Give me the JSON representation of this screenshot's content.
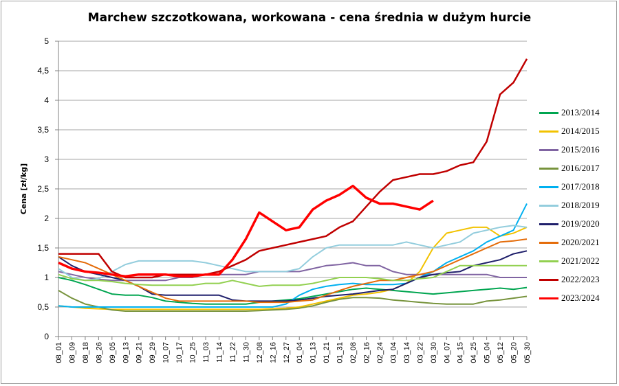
{
  "chart_data": {
    "type": "line",
    "title": "Marchew szczotkowana, workowana - cena średnia w dużym hurcie",
    "ylabel": "Cena [zł/kg]",
    "xlabel": "",
    "ylim": [
      0,
      5
    ],
    "yticks": [
      "0",
      "0,5",
      "1",
      "1,5",
      "2",
      "2,5",
      "3",
      "3,5",
      "4",
      "4,5",
      "5"
    ],
    "grid": "horizontal",
    "legend": "right",
    "categories": [
      "08_01",
      "08_09",
      "08_18",
      "08_26",
      "09_05",
      "09_13",
      "09_21",
      "09_29",
      "10_07",
      "10_17",
      "10_25",
      "11_03",
      "11_14",
      "11_22",
      "11_30",
      "12_08",
      "12_16",
      "12_27",
      "01_04",
      "01_13",
      "01_21",
      "01_31",
      "02_08",
      "02_16",
      "02_24",
      "03_04",
      "03_14",
      "03_22",
      "03_30",
      "04_07",
      "04_15",
      "04_25",
      "05_04",
      "05_12",
      "05_20",
      "05_30"
    ],
    "series": [
      {
        "name": "2013/2014",
        "color": "#00a550",
        "values": [
          1.0,
          0.95,
          0.88,
          0.8,
          0.72,
          0.7,
          0.7,
          0.66,
          0.6,
          0.58,
          0.56,
          0.55,
          0.55,
          0.55,
          0.55,
          0.58,
          0.6,
          0.62,
          0.64,
          0.68,
          0.72,
          0.76,
          0.8,
          0.82,
          0.8,
          0.78,
          0.76,
          0.74,
          0.72,
          0.74,
          0.76,
          0.78,
          0.8,
          0.82,
          0.8,
          0.83
        ]
      },
      {
        "name": "2014/2015",
        "color": "#f2c200",
        "values": [
          0.52,
          0.5,
          0.48,
          0.47,
          0.46,
          0.46,
          0.46,
          0.46,
          0.46,
          0.46,
          0.46,
          0.46,
          0.46,
          0.46,
          0.46,
          0.46,
          0.47,
          0.48,
          0.5,
          0.55,
          0.6,
          0.65,
          0.7,
          0.72,
          0.75,
          0.8,
          0.9,
          1.1,
          1.5,
          1.75,
          1.8,
          1.85,
          1.85,
          1.7,
          1.75,
          1.85
        ]
      },
      {
        "name": "2015/2016",
        "color": "#8064a2",
        "values": [
          1.1,
          1.05,
          1.0,
          0.97,
          0.95,
          0.95,
          0.95,
          0.95,
          0.95,
          1.0,
          1.0,
          1.05,
          1.05,
          1.05,
          1.05,
          1.1,
          1.1,
          1.1,
          1.1,
          1.15,
          1.2,
          1.22,
          1.25,
          1.2,
          1.2,
          1.1,
          1.05,
          1.05,
          1.05,
          1.05,
          1.05,
          1.05,
          1.05,
          1.0,
          1.0,
          1.0
        ]
      },
      {
        "name": "2016/2017",
        "color": "#77933c",
        "values": [
          0.78,
          0.65,
          0.55,
          0.5,
          0.45,
          0.43,
          0.43,
          0.43,
          0.43,
          0.43,
          0.43,
          0.43,
          0.43,
          0.43,
          0.43,
          0.44,
          0.45,
          0.46,
          0.48,
          0.52,
          0.58,
          0.63,
          0.66,
          0.66,
          0.65,
          0.62,
          0.6,
          0.58,
          0.56,
          0.55,
          0.55,
          0.55,
          0.6,
          0.62,
          0.65,
          0.68
        ]
      },
      {
        "name": "2017/2018",
        "color": "#00b0f0",
        "values": [
          0.52,
          0.5,
          0.5,
          0.5,
          0.5,
          0.5,
          0.5,
          0.5,
          0.5,
          0.5,
          0.5,
          0.5,
          0.5,
          0.5,
          0.5,
          0.5,
          0.5,
          0.55,
          0.7,
          0.8,
          0.85,
          0.88,
          0.9,
          0.88,
          0.88,
          0.88,
          0.9,
          1.0,
          1.1,
          1.25,
          1.35,
          1.45,
          1.6,
          1.7,
          1.8,
          2.25
        ]
      },
      {
        "name": "2018/2019",
        "color": "#93cddd",
        "values": [
          1.15,
          1.0,
          0.95,
          0.98,
          1.1,
          1.22,
          1.28,
          1.28,
          1.28,
          1.28,
          1.28,
          1.25,
          1.2,
          1.15,
          1.1,
          1.1,
          1.1,
          1.1,
          1.15,
          1.35,
          1.5,
          1.55,
          1.55,
          1.55,
          1.55,
          1.55,
          1.6,
          1.55,
          1.5,
          1.55,
          1.6,
          1.75,
          1.8,
          1.85,
          1.88,
          1.85
        ]
      },
      {
        "name": "2019/2020",
        "color": "#1f1f6b",
        "values": [
          1.35,
          1.2,
          1.1,
          1.05,
          1.0,
          0.95,
          0.85,
          0.72,
          0.7,
          0.7,
          0.7,
          0.7,
          0.7,
          0.62,
          0.6,
          0.6,
          0.6,
          0.6,
          0.62,
          0.65,
          0.68,
          0.7,
          0.72,
          0.75,
          0.78,
          0.8,
          0.9,
          1.0,
          1.05,
          1.08,
          1.1,
          1.2,
          1.25,
          1.3,
          1.4,
          1.45
        ]
      },
      {
        "name": "2020/2021",
        "color": "#e46c0a",
        "values": [
          1.35,
          1.3,
          1.25,
          1.15,
          1.05,
          0.95,
          0.85,
          0.75,
          0.65,
          0.6,
          0.6,
          0.6,
          0.6,
          0.6,
          0.6,
          0.58,
          0.58,
          0.58,
          0.6,
          0.62,
          0.7,
          0.78,
          0.85,
          0.9,
          0.95,
          0.95,
          1.0,
          1.05,
          1.1,
          1.2,
          1.3,
          1.4,
          1.5,
          1.6,
          1.62,
          1.65
        ]
      },
      {
        "name": "2021/2022",
        "color": "#92d050",
        "values": [
          1.05,
          0.98,
          0.95,
          0.95,
          0.93,
          0.9,
          0.88,
          0.87,
          0.87,
          0.87,
          0.87,
          0.9,
          0.9,
          0.95,
          0.9,
          0.85,
          0.87,
          0.87,
          0.87,
          0.9,
          0.95,
          1.0,
          1.0,
          1.0,
          0.98,
          0.95,
          0.95,
          0.98,
          1.0,
          1.1,
          1.2,
          1.2,
          1.2,
          1.2,
          1.2,
          1.2
        ]
      },
      {
        "name": "2022/2023",
        "color": "#c00000",
        "values": [
          1.4,
          1.4,
          1.4,
          1.4,
          1.1,
          1.0,
          1.0,
          1.0,
          1.05,
          1.05,
          1.05,
          1.05,
          1.1,
          1.2,
          1.3,
          1.45,
          1.5,
          1.55,
          1.6,
          1.65,
          1.7,
          1.85,
          1.95,
          2.2,
          2.45,
          2.65,
          2.7,
          2.75,
          2.75,
          2.8,
          2.9,
          2.95,
          3.3,
          4.1,
          4.3,
          4.7
        ]
      },
      {
        "name": "2023/2024",
        "color": "#ff0000",
        "values": [
          1.25,
          1.15,
          1.1,
          1.08,
          1.05,
          1.02,
          1.05,
          1.05,
          1.05,
          1.02,
          1.02,
          1.05,
          1.05,
          1.3,
          1.65,
          2.1,
          1.95,
          1.8,
          1.85,
          2.15,
          2.3,
          2.4,
          2.55,
          2.35,
          2.25,
          2.25,
          2.2,
          2.15,
          2.3,
          null,
          null,
          null,
          null,
          null,
          null,
          null
        ]
      }
    ]
  }
}
